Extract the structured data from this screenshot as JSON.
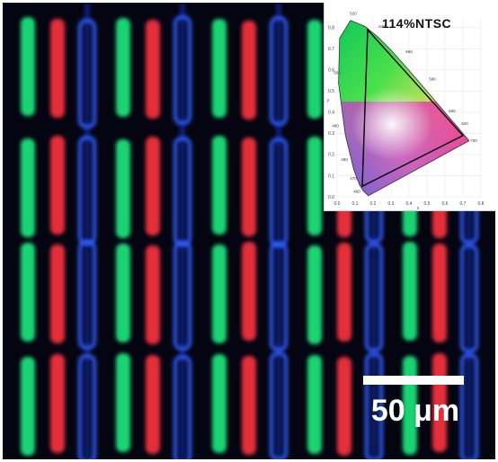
{
  "micrograph": {
    "subpixel_colors": {
      "green": "#1fe07a",
      "red": "#f0323c",
      "blue": "#2f5cff",
      "background": "#050512"
    }
  },
  "gamut_inset": {
    "label": "114%NTSC",
    "x_axis_label": "x",
    "y_axis_label": "y",
    "x_ticks": [
      "0.0",
      "0.1",
      "0.2",
      "0.3",
      "0.4",
      "0.5",
      "0.6",
      "0.7",
      "0.8"
    ],
    "y_ticks": [
      "0.0",
      "0.1",
      "0.2",
      "0.3",
      "0.4",
      "0.5",
      "0.6",
      "0.7",
      "0.8"
    ],
    "wavelength_labels": [
      "520",
      "540",
      "560",
      "500",
      "580",
      "600",
      "620",
      "700",
      "490",
      "480",
      "470",
      "460"
    ]
  },
  "scale_bar": {
    "label": "50 μm"
  }
}
